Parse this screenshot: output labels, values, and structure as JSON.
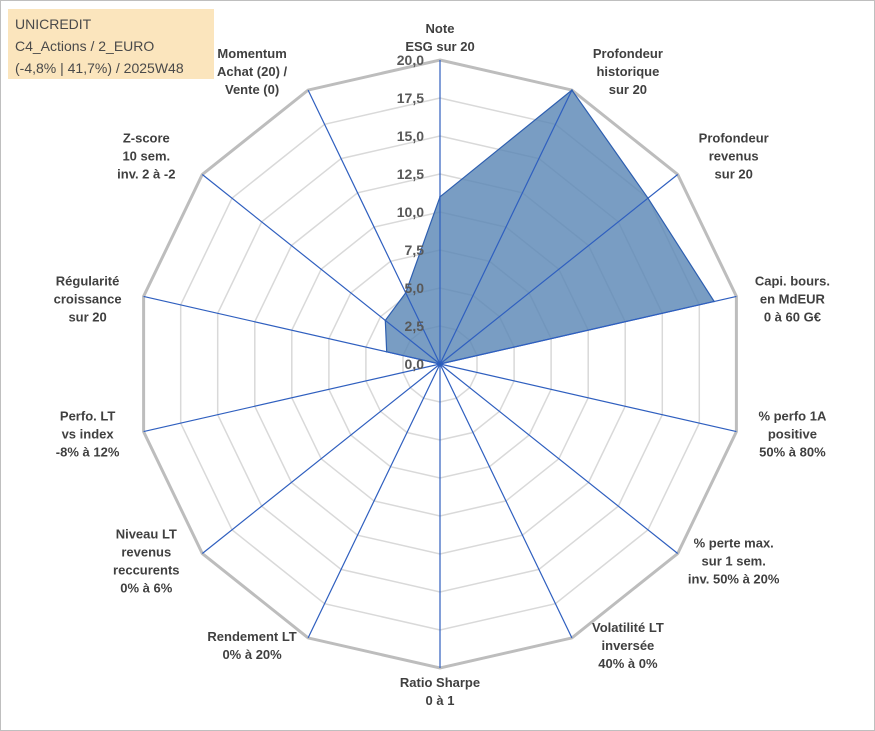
{
  "title": {
    "line1": "UNICREDIT",
    "line2": "C4_Actions / 2_EURO",
    "line3": "(-4,8% | 41,7%) / 2025W48"
  },
  "colors": {
    "fill": "#5b87b6",
    "stroke": "#2e5fb0",
    "spoke": "#2f5fbf",
    "grid_outer": "#bdbdbd",
    "grid_inner": "#d9d9d9",
    "title_bg": "#fbe5bd"
  },
  "chart_data": {
    "type": "radar",
    "rmin": 0,
    "rmax": 20,
    "ticks": [
      "0,0",
      "2,5",
      "5,0",
      "7,5",
      "10,0",
      "12,5",
      "15,0",
      "17,5",
      "20,0"
    ],
    "axes": [
      [
        "Note",
        "ESG sur 20"
      ],
      [
        "Profondeur",
        "historique",
        "sur 20"
      ],
      [
        "Profondeur",
        "revenus",
        "sur 20"
      ],
      [
        "Capi. bours.",
        "en MdEUR",
        "0 à 60 G€"
      ],
      [
        "% perfo 1A",
        "positive",
        "50% à 80%"
      ],
      [
        "% perte max.",
        "sur 1 sem.",
        "inv. 50% à 20%"
      ],
      [
        "Volatilité LT",
        "inversée",
        "40% à 0%"
      ],
      [
        "Ratio Sharpe",
        "0 à 1"
      ],
      [
        "Rendement LT",
        "0% à 20%"
      ],
      [
        "Niveau LT",
        "revenus",
        "reccurents",
        "0% à 6%"
      ],
      [
        "Perfo. LT",
        "vs index",
        "-8% à 12%"
      ],
      [
        "Régularité",
        "croissance",
        "sur 20"
      ],
      [
        "Z-score",
        "10 sem.",
        "inv. 2 à -2"
      ],
      [
        "Momentum",
        "Achat (20) /",
        "Vente (0)"
      ]
    ],
    "values": [
      11.0,
      20.0,
      17.5,
      18.5,
      0.0,
      0.0,
      0.0,
      0.0,
      0.0,
      0.0,
      0.0,
      3.6,
      4.6,
      5.2
    ],
    "grid": true,
    "legend": "none"
  }
}
